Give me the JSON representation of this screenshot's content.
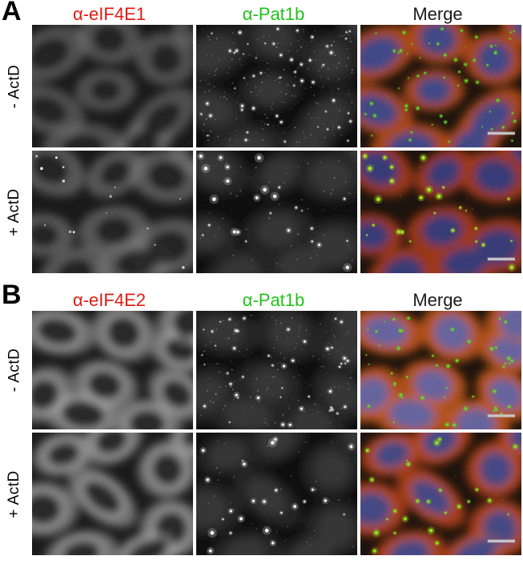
{
  "colors": {
    "red_label": "#e21b12",
    "green_label": "#1fc317",
    "dark_label": "#1a1a1a",
    "scalebar": "#c9c9c9"
  },
  "panels": [
    {
      "letter": "A",
      "columns": [
        {
          "label": "α-eIF4E1",
          "color_key": "colors.red_label"
        },
        {
          "label": "α-Pat1b",
          "color_key": "colors.green_label"
        },
        {
          "label": "Merge",
          "color_key": "colors.dark_label"
        }
      ],
      "rows": [
        {
          "label": "- ActD",
          "seed": 7,
          "puncta": 54,
          "dot_size": 1.0,
          "speckles": 170,
          "gray_level": 0.5,
          "perinuclear": false,
          "red_dots": 0,
          "merge": {
            "cyto": "#a84110",
            "nuc": "#333f85",
            "dot": "#5fd824"
          },
          "scalebar": true
        },
        {
          "label": "+ ActD",
          "seed": 19,
          "puncta": 26,
          "dot_size": 1.8,
          "speckles": 50,
          "gray_level": 0.58,
          "perinuclear": false,
          "red_dots": 15,
          "merge": {
            "cyto": "#992f08",
            "nuc": "#2b3374",
            "dot": "#a5e326"
          },
          "scalebar": true
        }
      ]
    },
    {
      "letter": "B",
      "columns": [
        {
          "label": "α-eIF4E2",
          "color_key": "colors.red_label"
        },
        {
          "label": "α-Pat1b",
          "color_key": "colors.green_label"
        },
        {
          "label": "Merge",
          "color_key": "colors.dark_label"
        }
      ],
      "rows": [
        {
          "label": "- ActD",
          "seed": 31,
          "puncta": 46,
          "dot_size": 1.1,
          "speckles": 130,
          "gray_level": 0.72,
          "perinuclear": true,
          "red_dots": 0,
          "merge": {
            "cyto": "#b04a12",
            "nuc": "#5c5c9f",
            "dot": "#63da26"
          },
          "scalebar": true
        },
        {
          "label": "+ ActD",
          "seed": 47,
          "puncta": 24,
          "dot_size": 1.9,
          "speckles": 40,
          "gray_level": 0.78,
          "perinuclear": true,
          "red_dots": 0,
          "merge": {
            "cyto": "#a23509",
            "nuc": "#3a4282",
            "dot": "#8ade20"
          },
          "scalebar": true
        }
      ]
    }
  ]
}
